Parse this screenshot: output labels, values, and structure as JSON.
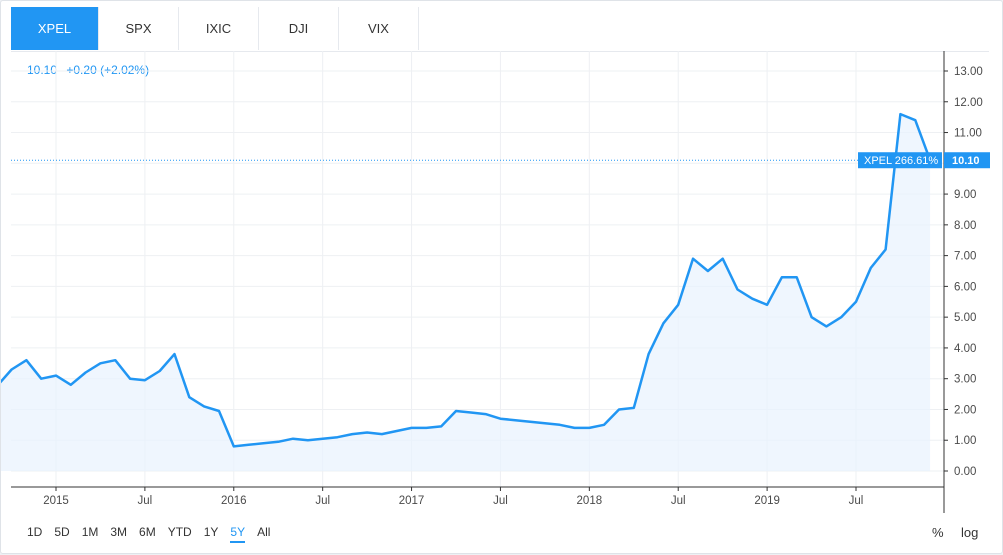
{
  "tabs": [
    {
      "label": "XPEL",
      "active": true
    },
    {
      "label": "SPX",
      "active": false
    },
    {
      "label": "IXIC",
      "active": false
    },
    {
      "label": "DJI",
      "active": false
    },
    {
      "label": "VIX",
      "active": false
    }
  ],
  "header": {
    "last": "10.10",
    "change": "+0.20 (+2.02%)"
  },
  "marker": {
    "label": "XPEL 266.61%",
    "price": "10.10",
    "value": 10.1
  },
  "ranges": [
    "1D",
    "5D",
    "1M",
    "3M",
    "6M",
    "YTD",
    "1Y",
    "5Y",
    "All"
  ],
  "active_range": "5Y",
  "controls": {
    "percent": "%",
    "log": "log"
  },
  "colors": {
    "line": "#2196f3",
    "fill": "#e8f2fd",
    "accent": "#2196f3"
  },
  "chart_data": {
    "type": "area",
    "title": "",
    "xlabel": "",
    "ylabel": "",
    "ylim": [
      0,
      13
    ],
    "yticks": [
      "0.00",
      "1.00",
      "2.00",
      "3.00",
      "4.00",
      "5.00",
      "6.00",
      "7.00",
      "8.00",
      "9.00",
      "10.00",
      "11.00",
      "12.00",
      "13.00"
    ],
    "xticks": [
      {
        "label": "2015",
        "x": "2015-01"
      },
      {
        "label": "Jul",
        "x": "2015-07"
      },
      {
        "label": "2016",
        "x": "2016-01"
      },
      {
        "label": "Jul",
        "x": "2016-07"
      },
      {
        "label": "2017",
        "x": "2017-01"
      },
      {
        "label": "Jul",
        "x": "2017-07"
      },
      {
        "label": "2018",
        "x": "2018-01"
      },
      {
        "label": "Jul",
        "x": "2018-07"
      },
      {
        "label": "2019",
        "x": "2019-01"
      },
      {
        "label": "Jul",
        "x": "2019-07"
      }
    ],
    "grid": true,
    "series": [
      {
        "name": "XPEL",
        "points": [
          [
            "2014-09",
            2.75
          ],
          [
            "2014-10",
            3.3
          ],
          [
            "2014-11",
            3.6
          ],
          [
            "2014-12",
            3.0
          ],
          [
            "2015-01",
            3.1
          ],
          [
            "2015-02",
            2.8
          ],
          [
            "2015-03",
            3.2
          ],
          [
            "2015-04",
            3.5
          ],
          [
            "2015-05",
            3.6
          ],
          [
            "2015-06",
            3.0
          ],
          [
            "2015-07",
            2.95
          ],
          [
            "2015-08",
            3.25
          ],
          [
            "2015-09",
            3.8
          ],
          [
            "2015-10",
            2.4
          ],
          [
            "2015-11",
            2.1
          ],
          [
            "2015-12",
            1.95
          ],
          [
            "2016-01",
            0.8
          ],
          [
            "2016-02",
            0.85
          ],
          [
            "2016-03",
            0.9
          ],
          [
            "2016-04",
            0.95
          ],
          [
            "2016-05",
            1.05
          ],
          [
            "2016-06",
            1.0
          ],
          [
            "2016-07",
            1.05
          ],
          [
            "2016-08",
            1.1
          ],
          [
            "2016-09",
            1.2
          ],
          [
            "2016-10",
            1.25
          ],
          [
            "2016-11",
            1.2
          ],
          [
            "2016-12",
            1.3
          ],
          [
            "2017-01",
            1.4
          ],
          [
            "2017-02",
            1.4
          ],
          [
            "2017-03",
            1.45
          ],
          [
            "2017-04",
            1.95
          ],
          [
            "2017-05",
            1.9
          ],
          [
            "2017-06",
            1.85
          ],
          [
            "2017-07",
            1.7
          ],
          [
            "2017-08",
            1.65
          ],
          [
            "2017-09",
            1.6
          ],
          [
            "2017-10",
            1.55
          ],
          [
            "2017-11",
            1.5
          ],
          [
            "2017-12",
            1.4
          ],
          [
            "2018-01",
            1.4
          ],
          [
            "2018-02",
            1.5
          ],
          [
            "2018-03",
            2.0
          ],
          [
            "2018-04",
            2.05
          ],
          [
            "2018-05",
            3.8
          ],
          [
            "2018-06",
            4.8
          ],
          [
            "2018-07",
            5.4
          ],
          [
            "2018-08",
            6.9
          ],
          [
            "2018-09",
            6.5
          ],
          [
            "2018-10",
            6.9
          ],
          [
            "2018-11",
            5.9
          ],
          [
            "2018-12",
            5.6
          ],
          [
            "2019-01",
            5.4
          ],
          [
            "2019-02",
            6.3
          ],
          [
            "2019-03",
            6.3
          ],
          [
            "2019-04",
            5.0
          ],
          [
            "2019-05",
            4.7
          ],
          [
            "2019-06",
            5.0
          ],
          [
            "2019-07",
            5.5
          ],
          [
            "2019-08",
            6.6
          ],
          [
            "2019-09",
            7.2
          ],
          [
            "2019-10",
            11.6
          ],
          [
            "2019-11",
            11.4
          ],
          [
            "2019-12",
            10.1
          ]
        ]
      }
    ]
  }
}
